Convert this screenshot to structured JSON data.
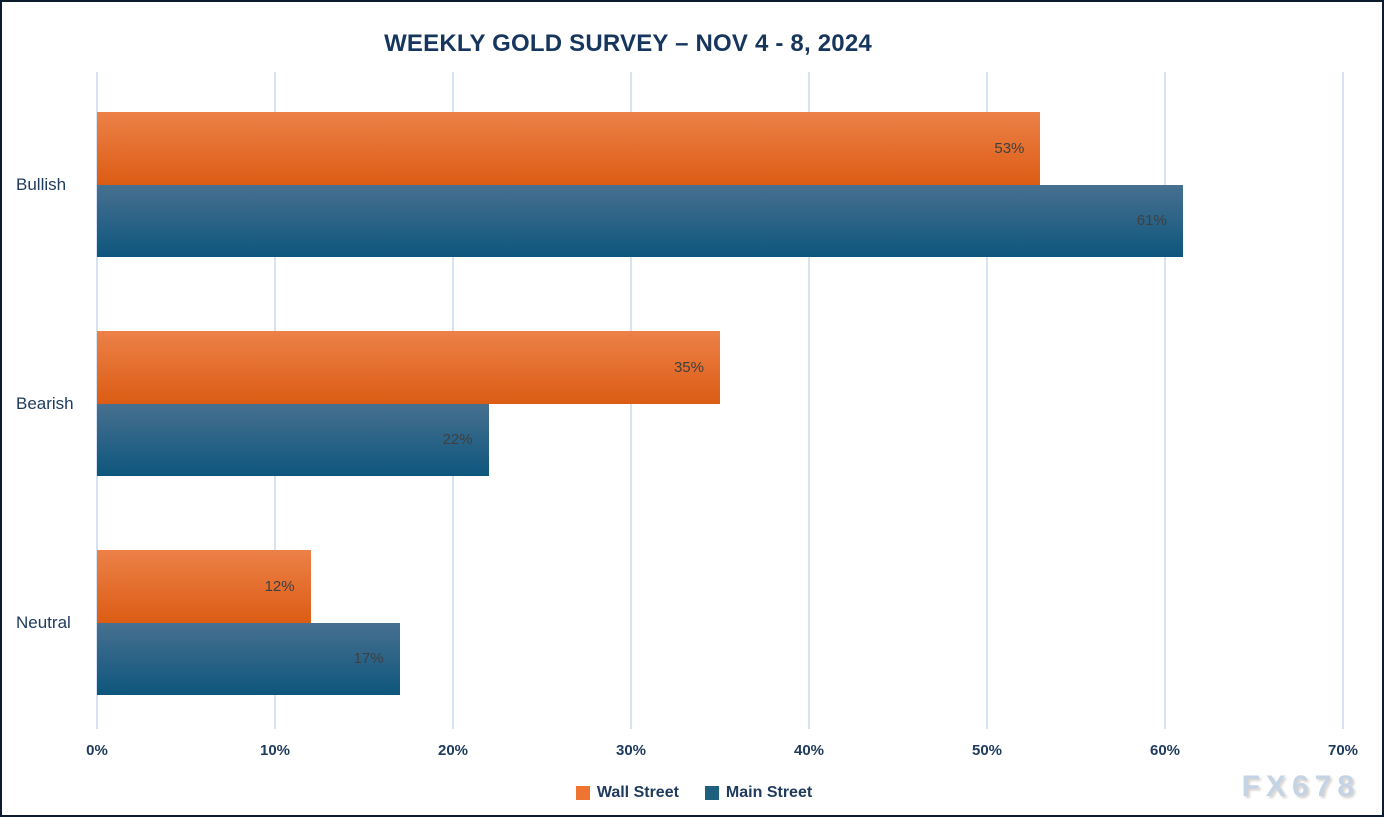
{
  "title": "WEEKLY GOLD SURVEY – NOV 4 - 8, 2024",
  "watermark": "FX678",
  "colors": {
    "title_text": "#17365d",
    "axis_text": "#1e3a5c",
    "data_label_text": "#3f3f3f",
    "gridline": "#d5e3f4",
    "frame_border": "#0d1b2e",
    "wall_street_accent": "#ed7431",
    "main_street_accent": "#20607f"
  },
  "chart_data": {
    "type": "bar",
    "orientation": "horizontal",
    "title": "WEEKLY GOLD SURVEY – NOV 4 - 8, 2024",
    "categories": [
      "Bullish",
      "Bearish",
      "Neutral"
    ],
    "series": [
      {
        "name": "Wall Street",
        "values": [
          53,
          35,
          12
        ],
        "gradient_top": "#ec8148",
        "gradient_bottom": "#dc5c14",
        "legend_color": "#ed7431"
      },
      {
        "name": "Main Street",
        "values": [
          61,
          22,
          17
        ],
        "gradient_top": "#477090",
        "gradient_bottom": "#0e567d",
        "legend_color": "#20607f"
      }
    ],
    "xlim": [
      0,
      70
    ],
    "x_tick_labels": [
      "0%",
      "10%",
      "20%",
      "30%",
      "40%",
      "50%",
      "60%",
      "70%"
    ],
    "data_label_format": "{value}%",
    "grid": true,
    "legend_position": "bottom"
  }
}
